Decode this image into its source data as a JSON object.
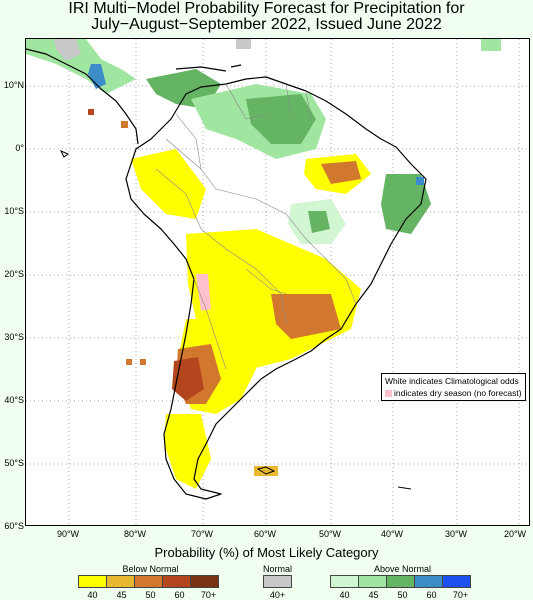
{
  "title": {
    "line1": "IRI Multi−Model Probability Forecast for Precipitation for",
    "line2": "July−August−September 2022, Issued June 2022"
  },
  "latitude_labels": [
    "10°N",
    "0°",
    "10°S",
    "20°S",
    "30°S",
    "40°S",
    "50°S",
    "60°S"
  ],
  "longitude_labels": [
    "90°W",
    "80°W",
    "70°W",
    "60°W",
    "50°W",
    "40°W",
    "30°W",
    "20°W"
  ],
  "legend_note": {
    "line1": "White indicates Climatological odds",
    "line2": "indicates dry season (no forecast)",
    "dry_color": "#ffc0cb"
  },
  "colorbar": {
    "title": "Probability (%) of Most Likely Category",
    "below_normal": {
      "label": "Below Normal",
      "colors": [
        "#ffff00",
        "#e8b830",
        "#d2782e",
        "#b4461e",
        "#7a3212"
      ],
      "ticks": [
        "40",
        "45",
        "50",
        "60",
        "70+"
      ]
    },
    "normal": {
      "label": "Normal",
      "colors": [
        "#c8c8c8"
      ],
      "ticks": [
        "40+"
      ]
    },
    "above_normal": {
      "label": "Above Normal",
      "colors": [
        "#d2f5d2",
        "#a0e6a0",
        "#64b464",
        "#3c8cc8",
        "#1e50f0"
      ],
      "ticks": [
        "40",
        "45",
        "50",
        "60",
        "70+"
      ]
    }
  }
}
